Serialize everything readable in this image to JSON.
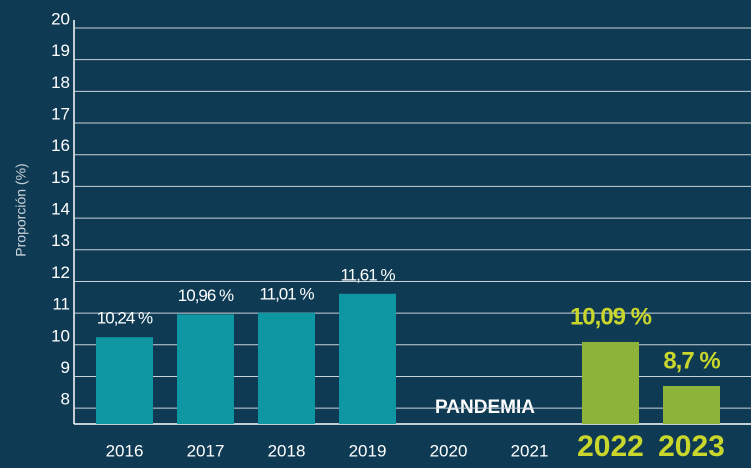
{
  "chart_data": {
    "type": "bar",
    "y_axis_label": "Proporción (%)",
    "annotation": "PANDEMIA",
    "categories": [
      "2016",
      "2017",
      "2018",
      "2019",
      "2020",
      "2021",
      "2022",
      "2023"
    ],
    "values": [
      10.24,
      10.96,
      11.01,
      11.61,
      null,
      null,
      10.09,
      8.7
    ],
    "value_labels": [
      "10,24 %",
      "10,96 %",
      "11,01 %",
      "11,61 %",
      null,
      null,
      "10,09 %",
      "8,7 %"
    ],
    "colors": [
      "#0e97a3",
      "#0e97a3",
      "#0e97a3",
      "#0e97a3",
      null,
      null,
      "#8db33b",
      "#8db33b"
    ],
    "label_colors": [
      "#ffffff",
      "#ffffff",
      "#ffffff",
      "#ffffff",
      "#ffffff",
      "#ffffff",
      "#c9d62c",
      "#c9d62c"
    ],
    "ylim": [
      7.5,
      20
    ],
    "yticks": [
      8,
      9,
      10,
      11,
      12,
      13,
      14,
      15,
      16,
      17,
      18,
      19,
      20
    ],
    "grid": true
  }
}
